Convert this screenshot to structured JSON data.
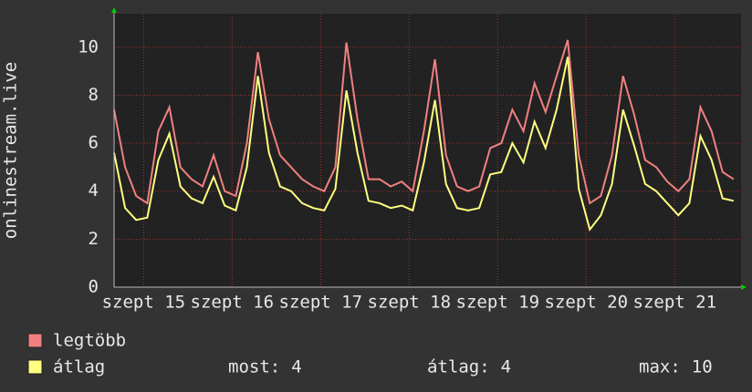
{
  "chart_data": {
    "type": "line",
    "y_label": "onlinestream.live",
    "x": [
      0,
      3,
      6,
      9,
      12,
      15,
      18,
      21,
      24,
      27,
      30,
      33,
      36,
      39,
      42,
      45,
      48,
      51,
      54,
      57,
      60,
      63,
      66,
      69,
      72,
      75,
      78,
      81,
      84,
      87,
      90,
      93,
      96,
      99,
      102,
      105,
      108,
      111,
      114,
      117,
      120,
      123,
      126,
      129,
      132,
      135,
      138,
      141,
      144,
      147,
      150,
      153,
      156,
      159,
      162,
      165,
      168
    ],
    "xlim": [
      0,
      170
    ],
    "xticks": [
      {
        "value": 8,
        "label": "szept 15"
      },
      {
        "value": 32,
        "label": "szept 16"
      },
      {
        "value": 56,
        "label": "szept 17"
      },
      {
        "value": 80,
        "label": "szept 18"
      },
      {
        "value": 104,
        "label": "szept 19"
      },
      {
        "value": 128,
        "label": "szept 20"
      },
      {
        "value": 152,
        "label": "szept 21"
      }
    ],
    "ylim": [
      0,
      11.4
    ],
    "yticks": [
      0,
      2,
      4,
      6,
      8,
      10
    ],
    "grid": true,
    "series": [
      {
        "name": "legtöbb",
        "color": "#f08080",
        "values": [
          7.4,
          5,
          3.8,
          3.5,
          6.5,
          7.5,
          5,
          4.5,
          4.2,
          5.5,
          4,
          3.8,
          6,
          9.8,
          7,
          5.5,
          5,
          4.5,
          4.2,
          4,
          5,
          10.2,
          7,
          4.5,
          4.5,
          4.2,
          4.4,
          4,
          6.5,
          9.5,
          5.5,
          4.2,
          4,
          4.2,
          5.8,
          6,
          7.4,
          6.5,
          8.5,
          7.3,
          8.8,
          10.3,
          5.5,
          3.5,
          3.8,
          5.5,
          8.8,
          7.2,
          5.3,
          5,
          4.4,
          4,
          4.5,
          7.5,
          6.5,
          4.8,
          4.5
        ]
      },
      {
        "name": "átlag",
        "color": "#ffff80",
        "values": [
          5.6,
          3.3,
          2.8,
          2.9,
          5.3,
          6.4,
          4.2,
          3.7,
          3.5,
          4.6,
          3.4,
          3.2,
          5,
          8.8,
          5.6,
          4.2,
          4,
          3.5,
          3.3,
          3.2,
          4.1,
          8.2,
          5.6,
          3.6,
          3.5,
          3.3,
          3.4,
          3.2,
          5.2,
          7.8,
          4.3,
          3.3,
          3.2,
          3.3,
          4.7,
          4.8,
          6,
          5.2,
          6.9,
          5.8,
          7.4,
          9.6,
          4.1,
          2.4,
          3,
          4.3,
          7.4,
          5.9,
          4.3,
          4,
          3.5,
          3,
          3.5,
          6.3,
          5.3,
          3.7,
          3.6
        ]
      }
    ],
    "stats": [
      {
        "label": "most:",
        "value": 4
      },
      {
        "label": "átlag:",
        "value": 4
      },
      {
        "label": "max:",
        "value": 10
      }
    ]
  }
}
